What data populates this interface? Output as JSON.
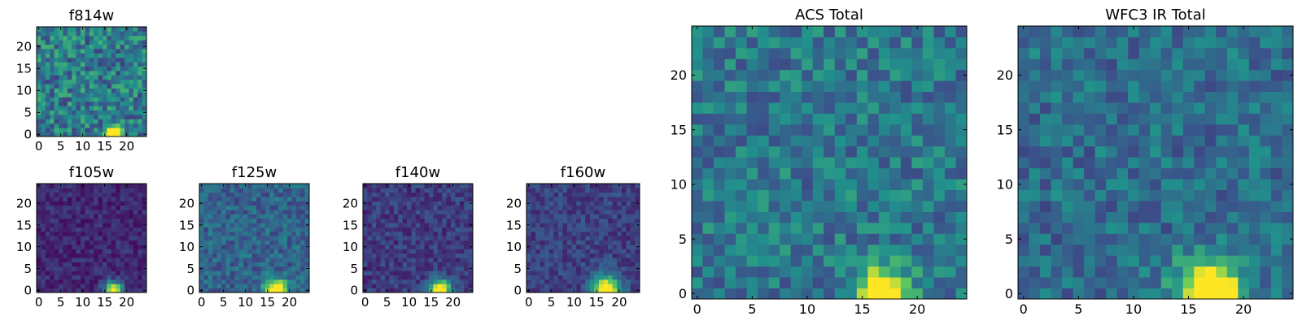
{
  "figure": {
    "colormap": "viridis",
    "colormap_stops": [
      "#440154",
      "#3b528b",
      "#21918c",
      "#5ec962",
      "#fde725"
    ],
    "axis_color": "#000000"
  },
  "chart_data": [
    {
      "id": "f814w",
      "type": "heatmap",
      "title": "f814w",
      "grid_size": 25,
      "xlim": [
        0,
        24
      ],
      "ylim": [
        0,
        24
      ],
      "xticks": [
        0,
        5,
        10,
        15,
        20
      ],
      "yticks": [
        0,
        5,
        10,
        15,
        20
      ],
      "xtick_labels": [
        "0",
        "5",
        "10",
        "15",
        "20"
      ],
      "ytick_labels": [
        "0",
        "5",
        "10",
        "15",
        "20"
      ],
      "background_level": 0.42,
      "background_noise": 0.22,
      "source": {
        "x": 17,
        "y": 0,
        "sigma": 1.3,
        "peak": 1.0
      },
      "seed": 11
    },
    {
      "id": "f105w",
      "type": "heatmap",
      "title": "f105w",
      "grid_size": 25,
      "xlim": [
        0,
        24
      ],
      "ylim": [
        0,
        24
      ],
      "xticks": [
        0,
        5,
        10,
        15,
        20
      ],
      "yticks": [
        0,
        5,
        10,
        15,
        20
      ],
      "xtick_labels": [
        "0",
        "5",
        "10",
        "15",
        "20"
      ],
      "ytick_labels": [
        "0",
        "5",
        "10",
        "15",
        "20"
      ],
      "background_level": 0.12,
      "background_noise": 0.09,
      "source": {
        "x": 17,
        "y": 0,
        "sigma": 1.4,
        "peak": 1.0
      },
      "seed": 23
    },
    {
      "id": "f125w",
      "type": "heatmap",
      "title": "f125w",
      "grid_size": 25,
      "xlim": [
        0,
        24
      ],
      "ylim": [
        0,
        24
      ],
      "xticks": [
        0,
        5,
        10,
        15,
        20
      ],
      "yticks": [
        0,
        5,
        10,
        15,
        20
      ],
      "xtick_labels": [
        "0",
        "5",
        "10",
        "15",
        "20"
      ],
      "ytick_labels": [
        "0",
        "5",
        "10",
        "15",
        "20"
      ],
      "background_level": 0.32,
      "background_noise": 0.13,
      "source": {
        "x": 17,
        "y": 0,
        "sigma": 1.7,
        "peak": 1.0
      },
      "seed": 37
    },
    {
      "id": "f140w",
      "type": "heatmap",
      "title": "f140w",
      "grid_size": 25,
      "xlim": [
        0,
        24
      ],
      "ylim": [
        0,
        24
      ],
      "xticks": [
        0,
        5,
        10,
        15,
        20
      ],
      "yticks": [
        0,
        5,
        10,
        15,
        20
      ],
      "xtick_labels": [
        "0",
        "5",
        "10",
        "15",
        "20"
      ],
      "ytick_labels": [
        "0",
        "5",
        "10",
        "15",
        "20"
      ],
      "background_level": 0.18,
      "background_noise": 0.1,
      "source": {
        "x": 17,
        "y": 0,
        "sigma": 1.7,
        "peak": 1.0
      },
      "seed": 41
    },
    {
      "id": "f160w",
      "type": "heatmap",
      "title": "f160w",
      "grid_size": 25,
      "xlim": [
        0,
        24
      ],
      "ylim": [
        0,
        24
      ],
      "xticks": [
        0,
        5,
        10,
        15,
        20
      ],
      "yticks": [
        0,
        5,
        10,
        15,
        20
      ],
      "xtick_labels": [
        "0",
        "5",
        "10",
        "15",
        "20"
      ],
      "ytick_labels": [
        "0",
        "5",
        "10",
        "15",
        "20"
      ],
      "background_level": 0.2,
      "background_noise": 0.1,
      "source": {
        "x": 17,
        "y": 0,
        "sigma": 2.2,
        "peak": 1.0
      },
      "seed": 53
    },
    {
      "id": "acs-total",
      "type": "heatmap",
      "title": "ACS Total",
      "grid_size": 25,
      "xlim": [
        0,
        24
      ],
      "ylim": [
        0,
        24
      ],
      "xticks": [
        0,
        5,
        10,
        15,
        20
      ],
      "yticks": [
        0,
        5,
        10,
        15,
        20
      ],
      "xtick_labels": [
        "0",
        "5",
        "10",
        "15",
        "20"
      ],
      "ytick_labels": [
        "0",
        "5",
        "10",
        "15",
        "20"
      ],
      "background_level": 0.4,
      "background_noise": 0.17,
      "source": {
        "x": 17,
        "y": 0,
        "sigma": 1.5,
        "peak": 1.0
      },
      "seed": 67
    },
    {
      "id": "wfc3-ir-total",
      "type": "heatmap",
      "title": "WFC3 IR Total",
      "grid_size": 25,
      "xlim": [
        0,
        24
      ],
      "ylim": [
        0,
        24
      ],
      "xticks": [
        0,
        5,
        10,
        15,
        20
      ],
      "yticks": [
        0,
        5,
        10,
        15,
        20
      ],
      "xtick_labels": [
        "0",
        "5",
        "10",
        "15",
        "20"
      ],
      "ytick_labels": [
        "0",
        "5",
        "10",
        "15",
        "20"
      ],
      "background_level": 0.36,
      "background_noise": 0.15,
      "source": {
        "x": 17,
        "y": 0,
        "sigma": 2.0,
        "peak": 1.0
      },
      "seed": 79
    }
  ]
}
